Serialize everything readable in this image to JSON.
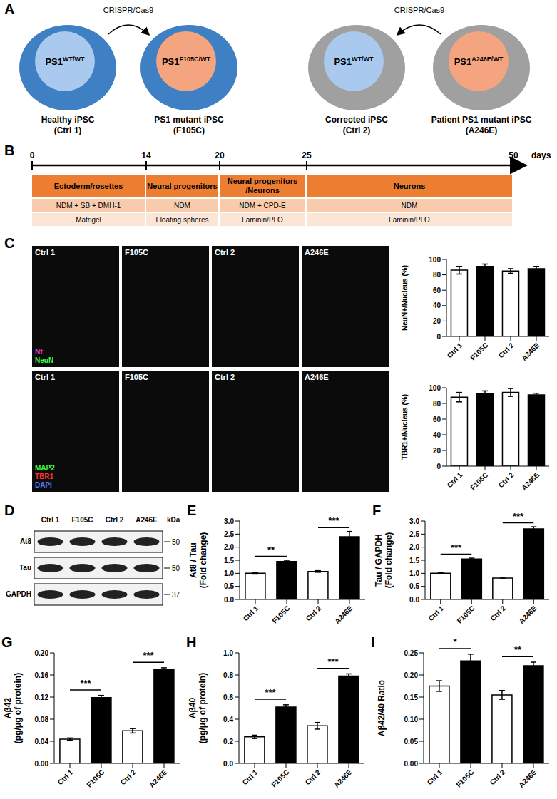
{
  "diagram": {
    "letter": "A",
    "arrows": [
      "CRISPR/Cas9",
      "CRISPR/Cas9"
    ],
    "cells": [
      {
        "gene": {
          "base": "PS1",
          "sup": "WT/WT"
        },
        "caption": [
          "Healthy iPSC",
          "(Ctrl 1)"
        ]
      },
      {
        "gene": {
          "base": "PS1",
          "sup": "F105C/WT"
        },
        "caption": [
          "PS1 mutant iPSC",
          "(F105C)"
        ]
      },
      {
        "gene": {
          "base": "PS1",
          "sup": "WT/WT"
        },
        "caption": [
          "Corrected iPSC",
          "(Ctrl 2)"
        ]
      },
      {
        "gene": {
          "base": "PS1",
          "sup": "A246E/WT"
        },
        "caption": [
          "Patient PS1 mutant iPSC",
          "(A246E)"
        ]
      }
    ]
  },
  "timeline": {
    "letter": "B",
    "ticks": [
      0,
      14,
      20,
      25,
      50
    ],
    "unit": "days",
    "stages": [
      {
        "name": "Ectoderm/rosettes",
        "medium": "NDM + SB + DMH-1",
        "substrate": "Matrigel"
      },
      {
        "name": "Neural progenitors",
        "medium": "NDM",
        "substrate": "Floating spheres"
      },
      {
        "name": "Neural progenitors /Neurons",
        "medium": "NDM + CPD-E",
        "substrate": "Laminin/PLO"
      },
      {
        "name": "Neurons",
        "medium": "NDM",
        "substrate": "Laminin/PLO"
      }
    ]
  },
  "images": {
    "letter": "C",
    "rows": [
      {
        "labels": [
          "Ctrl 1",
          "F105C",
          "Ctrl 2",
          "A246E"
        ],
        "stains": [
          "Nf",
          "NeuN"
        ]
      },
      {
        "labels": [
          "Ctrl 1",
          "F105C",
          "Ctrl 2",
          "A246E"
        ],
        "stains": [
          "MAP2",
          "TBR1",
          "DAPI"
        ]
      }
    ]
  },
  "blot": {
    "letter": "D",
    "lanes": [
      "Ctrl 1",
      "F105C",
      "Ctrl 2",
      "A246E"
    ],
    "rows": [
      "At8",
      "Tau",
      "GAPDH"
    ],
    "unit": "kDa",
    "markers": [
      50,
      50,
      37
    ]
  },
  "chart_data": [
    {
      "type": "bar",
      "ylabel": [
        "NeuN+/Nucleus (%)"
      ],
      "categories": [
        "Ctrl 1",
        "F105C",
        "Ctrl 2",
        "A246E"
      ],
      "values": [
        86,
        91,
        85,
        88
      ],
      "errors": [
        5,
        3,
        3,
        3
      ],
      "colors": [
        "#ffffff",
        "#000000",
        "#ffffff",
        "#000000"
      ],
      "ylim": [
        0,
        100
      ],
      "yticks": [
        0,
        20,
        40,
        60,
        80,
        100
      ],
      "annotations": []
    },
    {
      "type": "bar",
      "ylabel": [
        "TBR1+/Nucleus (%)"
      ],
      "categories": [
        "Ctrl 1",
        "F105C",
        "Ctrl 2",
        "A246E"
      ],
      "values": [
        88,
        92,
        94,
        91
      ],
      "errors": [
        6,
        4,
        5,
        2
      ],
      "colors": [
        "#ffffff",
        "#000000",
        "#ffffff",
        "#000000"
      ],
      "ylim": [
        0,
        100
      ],
      "yticks": [
        0,
        20,
        40,
        60,
        80,
        100
      ],
      "annotations": []
    },
    {
      "type": "bar",
      "panel": "E",
      "ylabel": [
        "At8 / Tau",
        "(Fold change)"
      ],
      "categories": [
        "Ctrl 1",
        "F105C",
        "Ctrl 2",
        "A246E"
      ],
      "values": [
        1.0,
        1.45,
        1.07,
        2.4
      ],
      "errors": [
        0.03,
        0.05,
        0.03,
        0.2
      ],
      "colors": [
        "#ffffff",
        "#000000",
        "#ffffff",
        "#000000"
      ],
      "ylim": [
        0,
        3
      ],
      "yticks": [
        {
          "value": 0,
          "label": "0.0"
        },
        {
          "value": 0.5,
          "label": "0.5"
        },
        {
          "value": 1,
          "label": "1.0"
        },
        {
          "value": 1.5,
          "label": "1.5"
        },
        {
          "value": 2,
          "label": "2.0"
        },
        {
          "value": 2.5,
          "label": "2.5"
        },
        {
          "value": 3,
          "label": "3.0"
        }
      ],
      "annotations": [
        {
          "text": "**",
          "categories": [
            "Ctrl 1",
            "F105C"
          ]
        },
        {
          "text": "***",
          "categories": [
            "Ctrl 2",
            "A246E"
          ]
        }
      ]
    },
    {
      "type": "bar",
      "panel": "F",
      "ylabel": [
        "Tau / GAPDH",
        "(Fold change)"
      ],
      "categories": [
        "Ctrl 1",
        "F105C",
        "Ctrl 2",
        "A246E"
      ],
      "values": [
        1.0,
        1.55,
        0.82,
        2.7
      ],
      "errors": [
        0.02,
        0.03,
        0.03,
        0.08
      ],
      "colors": [
        "#ffffff",
        "#000000",
        "#ffffff",
        "#000000"
      ],
      "ylim": [
        0,
        3
      ],
      "yticks": [
        {
          "value": 0,
          "label": "0.0"
        },
        {
          "value": 0.5,
          "label": "0.5"
        },
        {
          "value": 1,
          "label": "1.0"
        },
        {
          "value": 1.5,
          "label": "1.5"
        },
        {
          "value": 2,
          "label": "2.0"
        },
        {
          "value": 2.5,
          "label": "2.5"
        },
        {
          "value": 3,
          "label": "3.0"
        }
      ],
      "annotations": [
        {
          "text": "***",
          "categories": [
            "Ctrl 1",
            "F105C"
          ]
        },
        {
          "text": "***",
          "categories": [
            "Ctrl 2",
            "A246E"
          ]
        }
      ]
    },
    {
      "type": "bar",
      "panel": "G",
      "ylabel": [
        "Aβ42",
        "(pg/μg of protein)"
      ],
      "categories": [
        "Ctrl 1",
        "F105C",
        "Ctrl 2",
        "A246E"
      ],
      "values": [
        0.044,
        0.119,
        0.059,
        0.17
      ],
      "errors": [
        0.002,
        0.004,
        0.004,
        0.003
      ],
      "colors": [
        "#ffffff",
        "#000000",
        "#ffffff",
        "#000000"
      ],
      "ylim": [
        0,
        0.2
      ],
      "yticks": [
        {
          "value": 0,
          "label": "0.00"
        },
        {
          "value": 0.04,
          "label": "0.04"
        },
        {
          "value": 0.08,
          "label": "0.08"
        },
        {
          "value": 0.12,
          "label": "0.12"
        },
        {
          "value": 0.16,
          "label": "0.16"
        },
        {
          "value": 0.2,
          "label": "0.20"
        }
      ],
      "annotations": [
        {
          "text": "***",
          "categories": [
            "Ctrl 1",
            "F105C"
          ]
        },
        {
          "text": "***",
          "categories": [
            "Ctrl 2",
            "A246E"
          ]
        }
      ]
    },
    {
      "type": "bar",
      "panel": "H",
      "ylabel": [
        "Aβ40",
        "(pg/μg of protein)"
      ],
      "categories": [
        "Ctrl 1",
        "F105C",
        "Ctrl 2",
        "A246E"
      ],
      "values": [
        0.24,
        0.51,
        0.34,
        0.79
      ],
      "errors": [
        0.015,
        0.02,
        0.03,
        0.02
      ],
      "colors": [
        "#ffffff",
        "#000000",
        "#ffffff",
        "#000000"
      ],
      "ylim": [
        0,
        1
      ],
      "yticks": [
        {
          "value": 0,
          "label": "0.0"
        },
        {
          "value": 0.2,
          "label": "0.2"
        },
        {
          "value": 0.4,
          "label": "0.4"
        },
        {
          "value": 0.6,
          "label": "0.6"
        },
        {
          "value": 0.8,
          "label": "0.8"
        },
        {
          "value": 1,
          "label": "1.0"
        }
      ],
      "annotations": [
        {
          "text": "***",
          "categories": [
            "Ctrl 1",
            "F105C"
          ]
        },
        {
          "text": "***",
          "categories": [
            "Ctrl 2",
            "A246E"
          ]
        }
      ]
    },
    {
      "type": "bar",
      "panel": "I",
      "ylabel": [
        "Aβ42/40 Ratio"
      ],
      "categories": [
        "Ctrl 1",
        "F105C",
        "Ctrl 2",
        "A246E"
      ],
      "values": [
        0.175,
        0.232,
        0.155,
        0.221
      ],
      "errors": [
        0.012,
        0.015,
        0.01,
        0.008
      ],
      "colors": [
        "#ffffff",
        "#000000",
        "#ffffff",
        "#000000"
      ],
      "ylim": [
        0,
        0.25
      ],
      "yticks": [
        {
          "value": 0,
          "label": "0.00"
        },
        {
          "value": 0.05,
          "label": "0.05"
        },
        {
          "value": 0.1,
          "label": "0.10"
        },
        {
          "value": 0.15,
          "label": "0.15"
        },
        {
          "value": 0.2,
          "label": "0.20"
        },
        {
          "value": 0.25,
          "label": "0.25"
        }
      ],
      "annotations": [
        {
          "text": "*",
          "categories": [
            "Ctrl 1",
            "F105C"
          ]
        },
        {
          "text": "**",
          "categories": [
            "Ctrl 2",
            "A246E"
          ]
        }
      ]
    }
  ]
}
